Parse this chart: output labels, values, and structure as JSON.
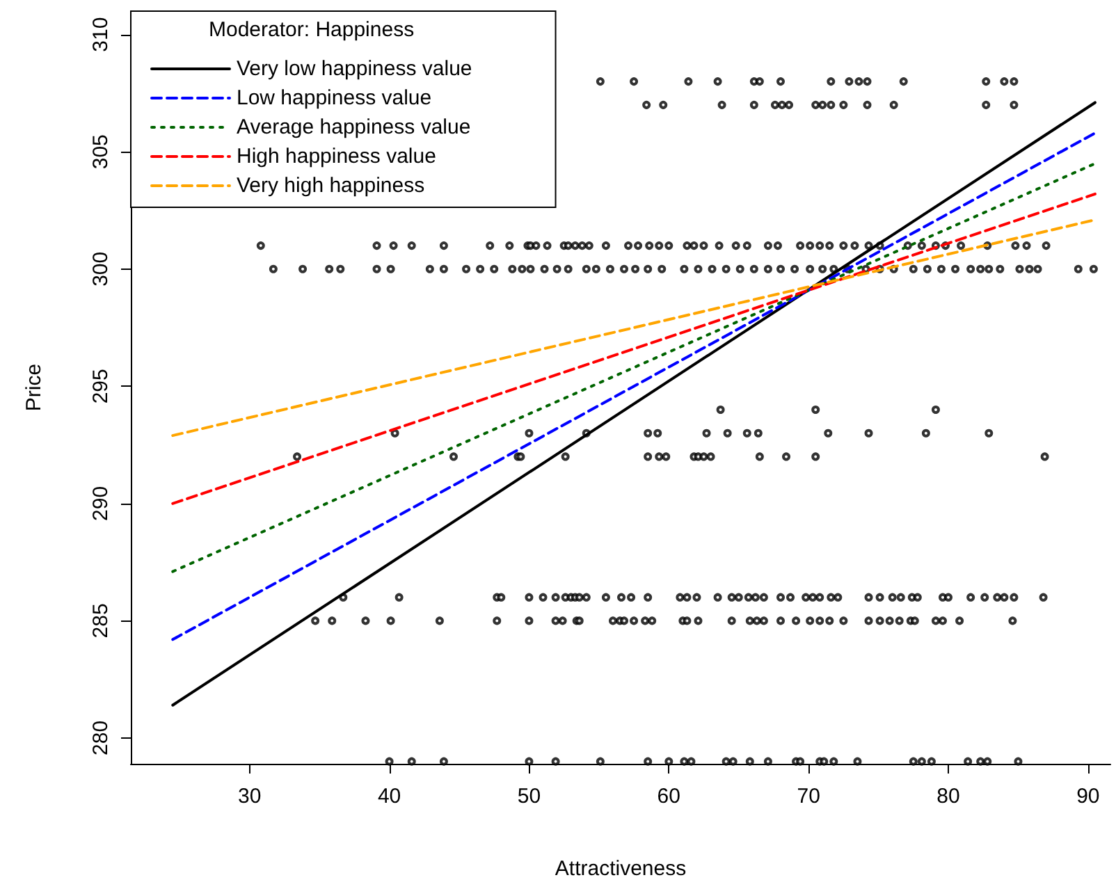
{
  "chart_data": {
    "type": "line",
    "xlabel": "Attractiveness",
    "ylabel": "Price",
    "legend_title": "Moderator: Happiness",
    "legend": "top left",
    "grid": false,
    "xlim": [
      21.5,
      91.6
    ],
    "xticks": [
      30,
      40,
      50,
      60,
      70,
      80,
      90
    ],
    "ylim": [
      278.9,
      311
    ],
    "yticks": [
      280,
      285,
      290,
      295,
      300,
      305,
      310
    ],
    "series": [
      {
        "type": "scatter",
        "color": "#000000",
        "marker": "circle",
        "x": [
          55.1,
          57.5,
          61.4,
          63.5,
          66.1,
          66.5,
          68.0,
          71.6,
          72.9,
          73.6,
          74.2,
          76.8,
          82.7,
          84.0,
          84.7,
          58.4,
          59.6,
          63.8,
          66.1,
          67.6,
          68.1,
          68.6,
          70.5,
          71.0,
          71.6,
          72.5,
          74.2,
          76.1,
          82.7,
          84.7,
          30.8,
          39.1,
          40.3,
          41.6,
          43.9,
          47.2,
          48.6,
          49.9,
          50.1,
          50.5,
          51.3,
          52.5,
          52.8,
          53.3,
          53.8,
          54.3,
          55.5,
          57.1,
          57.8,
          58.6,
          59.3,
          60.0,
          61.3,
          61.8,
          62.5,
          63.6,
          64.8,
          65.6,
          67.1,
          67.8,
          69.4,
          70.1,
          70.8,
          71.5,
          72.5,
          73.3,
          74.3,
          75.1,
          77.1,
          78.1,
          79.1,
          79.8,
          80.9,
          82.8,
          84.8,
          85.6,
          87.0,
          31.7,
          33.8,
          35.7,
          36.5,
          39.1,
          40.1,
          42.9,
          43.9,
          45.5,
          46.5,
          47.5,
          48.8,
          49.5,
          50.1,
          51.1,
          52.0,
          52.8,
          54.1,
          54.8,
          55.8,
          56.8,
          57.6,
          58.5,
          59.5,
          61.1,
          62.1,
          63.1,
          64.1,
          65.1,
          66.1,
          67.1,
          68.0,
          69.0,
          70.1,
          71.0,
          71.8,
          72.8,
          74.1,
          75.1,
          76.1,
          77.5,
          78.5,
          79.5,
          80.5,
          81.6,
          82.3,
          82.9,
          83.7,
          85.1,
          85.8,
          86.4,
          89.3,
          90.4,
          63.7,
          70.5,
          79.1,
          40.4,
          50.0,
          54.1,
          58.5,
          59.2,
          62.7,
          64.2,
          65.6,
          66.4,
          71.4,
          74.3,
          78.4,
          82.9,
          33.4,
          44.6,
          49.2,
          49.4,
          52.6,
          58.5,
          59.3,
          59.8,
          61.8,
          62.1,
          62.5,
          63.0,
          66.5,
          68.4,
          70.5,
          86.9,
          36.7,
          40.7,
          47.7,
          48.0,
          50.0,
          51.0,
          51.9,
          52.6,
          53.0,
          53.3,
          53.6,
          54.1,
          55.5,
          56.6,
          57.3,
          58.5,
          60.8,
          61.3,
          62.0,
          63.5,
          64.5,
          65.0,
          65.7,
          66.2,
          66.8,
          68.0,
          68.7,
          69.8,
          70.3,
          70.8,
          71.6,
          72.1,
          74.3,
          75.1,
          76.0,
          76.6,
          77.4,
          77.8,
          79.6,
          80.0,
          81.6,
          82.6,
          83.5,
          84.0,
          84.7,
          86.8,
          34.7,
          35.9,
          38.3,
          40.1,
          43.6,
          47.7,
          50.0,
          51.9,
          52.4,
          53.4,
          53.6,
          56.0,
          56.5,
          56.8,
          57.5,
          58.3,
          58.8,
          61.0,
          61.3,
          62.1,
          64.5,
          65.8,
          66.3,
          66.8,
          68.0,
          69.1,
          70.1,
          70.8,
          71.5,
          72.5,
          74.3,
          75.1,
          75.8,
          76.5,
          77.3,
          77.6,
          79.1,
          79.6,
          80.8,
          84.6,
          40.0,
          41.6,
          43.9,
          50.0,
          51.9,
          55.1,
          58.5,
          60.0,
          61.1,
          61.6,
          64.1,
          64.6,
          65.8,
          67.1,
          69.1,
          69.4,
          70.8,
          71.1,
          71.8,
          73.5,
          77.5,
          78.1,
          78.8,
          81.4,
          82.3,
          82.8,
          85.0
        ],
        "values": [
          308,
          308,
          308,
          308,
          308,
          308,
          308,
          308,
          308,
          308,
          308,
          308,
          308,
          308,
          308,
          307,
          307,
          307,
          307,
          307,
          307,
          307,
          307,
          307,
          307,
          307,
          307,
          307,
          307,
          307,
          301,
          301,
          301,
          301,
          301,
          301,
          301,
          301,
          301,
          301,
          301,
          301,
          301,
          301,
          301,
          301,
          301,
          301,
          301,
          301,
          301,
          301,
          301,
          301,
          301,
          301,
          301,
          301,
          301,
          301,
          301,
          301,
          301,
          301,
          301,
          301,
          301,
          301,
          301,
          301,
          301,
          301,
          301,
          301,
          301,
          301,
          301,
          300,
          300,
          300,
          300,
          300,
          300,
          300,
          300,
          300,
          300,
          300,
          300,
          300,
          300,
          300,
          300,
          300,
          300,
          300,
          300,
          300,
          300,
          300,
          300,
          300,
          300,
          300,
          300,
          300,
          300,
          300,
          300,
          300,
          300,
          300,
          300,
          300,
          300,
          300,
          300,
          300,
          300,
          300,
          300,
          300,
          300,
          300,
          300,
          300,
          300,
          300,
          300,
          300,
          294,
          294,
          294,
          293,
          293,
          293,
          293,
          293,
          293,
          293,
          293,
          293,
          293,
          293,
          293,
          293,
          292,
          292,
          292,
          292,
          292,
          292,
          292,
          292,
          292,
          292,
          292,
          292,
          292,
          292,
          292,
          292,
          286,
          286,
          286,
          286,
          286,
          286,
          286,
          286,
          286,
          286,
          286,
          286,
          286,
          286,
          286,
          286,
          286,
          286,
          286,
          286,
          286,
          286,
          286,
          286,
          286,
          286,
          286,
          286,
          286,
          286,
          286,
          286,
          286,
          286,
          286,
          286,
          286,
          286,
          286,
          286,
          286,
          286,
          286,
          286,
          286,
          286,
          285,
          285,
          285,
          285,
          285,
          285,
          285,
          285,
          285,
          285,
          285,
          285,
          285,
          285,
          285,
          285,
          285,
          285,
          285,
          285,
          285,
          285,
          285,
          285,
          285,
          285,
          285,
          285,
          285,
          285,
          285,
          285,
          285,
          285,
          285,
          285,
          285,
          285,
          285,
          285,
          279,
          279,
          279,
          279,
          279,
          279,
          279,
          279,
          279,
          279,
          279,
          279,
          279,
          279,
          279,
          279,
          279,
          279,
          279,
          279,
          279,
          279,
          279,
          279,
          279,
          279,
          279
        ]
      },
      {
        "name": "Very low happiness value",
        "color": "#000000",
        "line_style": "solid",
        "marker": "none",
        "x": [
          24.5,
          90.5
        ],
        "values": [
          281.4,
          307.1
        ]
      },
      {
        "name": "Low happiness value",
        "color": "#0000ff",
        "line_style": "dashed",
        "marker": "none",
        "x": [
          24.5,
          90.5
        ],
        "values": [
          284.2,
          305.8
        ]
      },
      {
        "name": "Average happiness value",
        "color": "#006400",
        "line_style": "dotted",
        "marker": "none",
        "x": [
          24.5,
          90.5
        ],
        "values": [
          287.1,
          304.5
        ]
      },
      {
        "name": "High happiness value",
        "color": "#ff0000",
        "line_style": "dashed",
        "marker": "none",
        "x": [
          24.5,
          90.5
        ],
        "values": [
          290.0,
          303.2
        ]
      },
      {
        "name": "Very high happiness",
        "color": "#ffa500",
        "line_style": "dashed",
        "marker": "none",
        "x": [
          24.5,
          90.5
        ],
        "values": [
          292.9,
          302.1
        ]
      }
    ]
  }
}
